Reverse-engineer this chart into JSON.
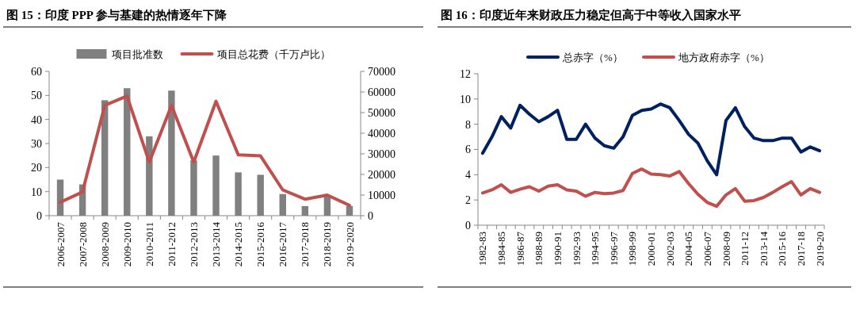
{
  "chart_data": [
    {
      "type": "bar",
      "title": "图 15：印度 PPP 参与基建的热情逐年下降",
      "categories": [
        "2006-2007",
        "2007-2008",
        "2008-2009",
        "2009-2010",
        "2010-2011",
        "2011-2012",
        "2012-2013",
        "2013-2014",
        "2014-2015",
        "2015-2016",
        "2016-2017",
        "2017-2018",
        "2018-2019",
        "2019-2020"
      ],
      "series": [
        {
          "name": "项目批准数",
          "color": "#808080",
          "values": [
            15,
            13,
            48,
            53,
            33,
            52,
            23,
            25,
            18,
            17,
            9,
            4,
            8,
            4
          ]
        },
        {
          "name": "项目总花费（千万卢比）",
          "type": "line",
          "axis": "y2",
          "color": "#c0504d",
          "values": [
            6500,
            11500,
            53500,
            58000,
            26000,
            53500,
            26000,
            55500,
            29500,
            29000,
            12500,
            8000,
            10000,
            5000
          ]
        }
      ],
      "ylim": [
        0,
        60
      ],
      "yticks": [
        0,
        10,
        20,
        30,
        40,
        50,
        60
      ],
      "y2lim": [
        0,
        70000
      ],
      "y2ticks": [
        0,
        10000,
        20000,
        30000,
        40000,
        50000,
        60000,
        70000
      ],
      "legend": "top"
    },
    {
      "type": "line",
      "title": "图 16：印度近年来财政压力稳定但高于中等收入国家水平",
      "categories": [
        "1982-83",
        null,
        "1984-85",
        null,
        "1986-87",
        null,
        "1988-89",
        null,
        "1990-91",
        null,
        "1992-93",
        null,
        "1994-95",
        null,
        "1996-97",
        null,
        "1998-99",
        null,
        "2000-01",
        null,
        "2002-03",
        null,
        "2004-05",
        null,
        "2006-07",
        null,
        "2008-09",
        null,
        "2011-12",
        null,
        "2013-14",
        null,
        "2015-16",
        null,
        "2017-18",
        null,
        "2019-20"
      ],
      "series": [
        {
          "name": "总赤字（%）",
          "color": "#002060",
          "values": [
            5.7,
            7.0,
            8.6,
            7.7,
            9.5,
            8.8,
            8.2,
            8.6,
            9.1,
            6.8,
            6.8,
            8.0,
            6.9,
            6.3,
            6.1,
            7.0,
            8.7,
            9.1,
            9.2,
            9.6,
            9.3,
            8.3,
            7.2,
            6.5,
            5.1,
            4.0,
            8.3,
            9.3,
            7.8,
            6.9,
            6.7,
            6.7,
            6.9,
            6.9,
            5.8,
            6.2,
            5.9
          ]
        },
        {
          "name": "地方政府赤字（%）",
          "color": "#c0504d",
          "values": [
            2.55,
            2.8,
            3.2,
            2.6,
            2.85,
            3.05,
            2.7,
            3.1,
            3.2,
            2.8,
            2.7,
            2.3,
            2.6,
            2.5,
            2.55,
            2.75,
            4.1,
            4.45,
            4.05,
            4.0,
            3.9,
            4.25,
            3.3,
            2.45,
            1.8,
            1.5,
            2.4,
            2.9,
            1.9,
            1.95,
            2.2,
            2.6,
            3.05,
            3.45,
            2.4,
            2.9,
            2.6
          ]
        }
      ],
      "ylim": [
        0,
        12
      ],
      "yticks": [
        0,
        2,
        4,
        6,
        8,
        10,
        12
      ],
      "legend": "top"
    }
  ]
}
